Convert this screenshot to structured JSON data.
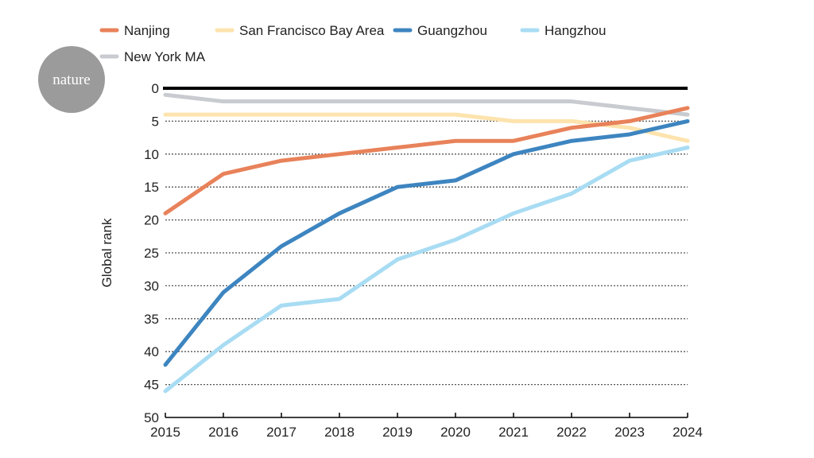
{
  "logo": "nature",
  "chart_data": {
    "type": "line",
    "x": [
      2015,
      2016,
      2017,
      2018,
      2019,
      2020,
      2021,
      2022,
      2023,
      2024
    ],
    "ylabel": "Global rank",
    "xlabel": "",
    "ylim": [
      50,
      0
    ],
    "y_inverted": true,
    "yticks": [
      0,
      5,
      10,
      15,
      20,
      25,
      30,
      35,
      40,
      45,
      50
    ],
    "grid": "horizontal dotted",
    "legend": "top",
    "series": [
      {
        "name": "Nanjing",
        "color": "#e8825a",
        "values": [
          19,
          13,
          11,
          10,
          9,
          8,
          8,
          6,
          5,
          3
        ]
      },
      {
        "name": "San Francisco Bay Area",
        "color": "#fde3ad",
        "values": [
          4,
          4,
          4,
          4,
          4,
          4,
          5,
          5,
          6,
          8
        ]
      },
      {
        "name": "Guangzhou",
        "color": "#3d85c0",
        "values": [
          42,
          31,
          24,
          19,
          15,
          14,
          10,
          8,
          7,
          5
        ]
      },
      {
        "name": "Hangzhou",
        "color": "#a8dcf3",
        "values": [
          46,
          39,
          33,
          32,
          26,
          23,
          19,
          16,
          11,
          9
        ]
      },
      {
        "name": "New York MA",
        "color": "#c8cbd0",
        "values": [
          1,
          2,
          2,
          2,
          2,
          2,
          2,
          2,
          3,
          4
        ]
      }
    ]
  }
}
